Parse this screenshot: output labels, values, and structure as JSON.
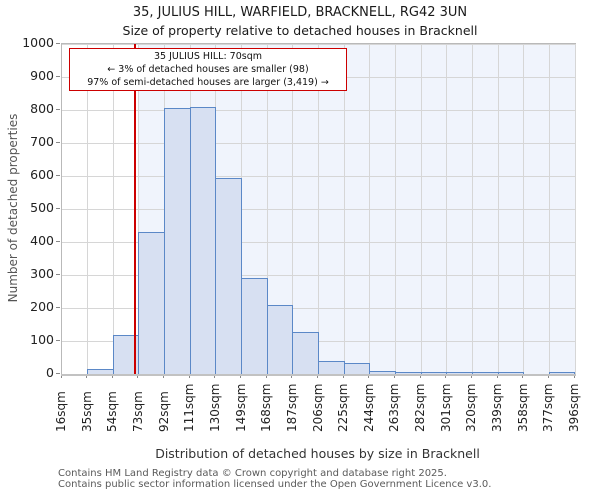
{
  "title": "35, JULIUS HILL, WARFIELD, BRACKNELL, RG42 3UN",
  "subtitle": "Size of property relative to detached houses in Bracknell",
  "annotation": {
    "line1": "35 JULIUS HILL: 70sqm",
    "line2": "← 3% of detached houses are smaller (98)",
    "line3": "97% of semi-detached houses are larger (3,419) →"
  },
  "chart_data": {
    "type": "bar",
    "title": "35, JULIUS HILL, WARFIELD, BRACKNELL, RG42 3UN",
    "subtitle": "Size of property relative to detached houses in Bracknell",
    "xlabel": "Distribution of detached houses by size in Bracknell",
    "ylabel": "Number of detached properties",
    "bin_edges_sqm": [
      16,
      35,
      54,
      73,
      92,
      111,
      130,
      149,
      168,
      187,
      206,
      225,
      244,
      263,
      282,
      301,
      320,
      339,
      358,
      377,
      396
    ],
    "bin_labels": [
      "16sqm",
      "35sqm",
      "54sqm",
      "73sqm",
      "92sqm",
      "111sqm",
      "130sqm",
      "149sqm",
      "168sqm",
      "187sqm",
      "206sqm",
      "225sqm",
      "244sqm",
      "263sqm",
      "282sqm",
      "301sqm",
      "320sqm",
      "339sqm",
      "358sqm",
      "377sqm",
      "396sqm"
    ],
    "values": [
      0,
      15,
      118,
      430,
      805,
      810,
      593,
      290,
      210,
      128,
      38,
      33,
      8,
      5,
      5,
      3,
      3,
      3,
      0,
      3
    ],
    "ylim": [
      0,
      1000
    ],
    "ytick_step": 100,
    "grid": true,
    "marker_value_sqm": 70,
    "shade_from_sqm": 73,
    "shade_to_sqm": 396,
    "colors": {
      "bar_fill": "#d7e0f2",
      "bar_border": "#5b88c7",
      "marker_line": "#cc0000",
      "annotation_border": "#cc0000",
      "shade_band": "#f0f4fc",
      "gridline": "#d6d6d6"
    }
  },
  "footer": {
    "line1": "Contains HM Land Registry data © Crown copyright and database right 2025.",
    "line2": "Contains public sector information licensed under the Open Government Licence v3.0."
  }
}
